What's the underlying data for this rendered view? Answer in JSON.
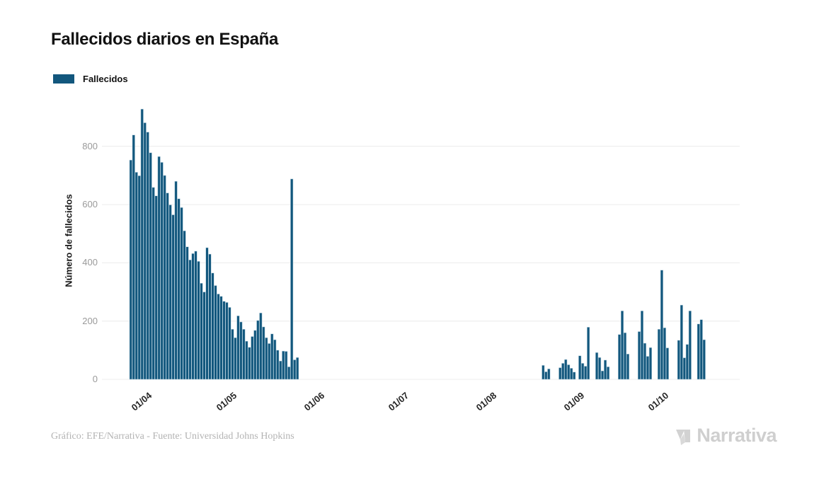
{
  "title": "Fallecidos diarios en España",
  "legend": {
    "items": [
      {
        "label": "Fallecidos",
        "color": "#12577d"
      }
    ]
  },
  "y_axis": {
    "title": "Número de fallecidos",
    "tick_labels": [
      "0",
      "200",
      "400",
      "600",
      "800"
    ]
  },
  "x_axis": {
    "tick_labels": [
      "01/04",
      "01/05",
      "01/06",
      "01/07",
      "01/08",
      "01/09",
      "01/10"
    ]
  },
  "footer": {
    "credit": "Gráfico: EFE/Narrativa - Fuente: Universidad Johns Hopkins"
  },
  "branding": {
    "logo_text": "Narrativa"
  },
  "chart_data": {
    "type": "bar",
    "title": "Fallecidos diarios en España",
    "xlabel": "",
    "ylabel": "Número de fallecidos",
    "legend_position": "top-left",
    "grid": true,
    "bar_color": "#12577d",
    "bar_stroke": "#b9d2df",
    "grid_color": "#ececec",
    "y_ticks": [
      0,
      200,
      400,
      600,
      800
    ],
    "ylim": [
      0,
      950
    ],
    "ticks": [
      {
        "label": "01/04",
        "day": 4
      },
      {
        "label": "01/05",
        "day": 34
      },
      {
        "label": "01/06",
        "day": 65
      },
      {
        "label": "01/07",
        "day": 95
      },
      {
        "label": "01/08",
        "day": 126
      },
      {
        "label": "01/09",
        "day": 157
      },
      {
        "label": "01/10",
        "day": 187
      }
    ],
    "series": [
      {
        "name": "Fallecidos",
        "values": [
          753,
          839,
          711,
          699,
          928,
          881,
          849,
          778,
          659,
          630,
          765,
          745,
          700,
          640,
          599,
          565,
          680,
          620,
          590,
          510,
          455,
          410,
          432,
          440,
          405,
          330,
          300,
          452,
          430,
          365,
          322,
          293,
          285,
          268,
          264,
          247,
          172,
          143,
          218,
          197,
          172,
          131,
          110,
          147,
          168,
          202,
          228,
          180,
          143,
          123,
          156,
          136,
          100,
          63,
          97,
          96,
          43,
          688,
          67,
          75,
          0,
          0,
          0,
          0,
          0,
          0,
          0,
          0,
          0,
          0,
          0,
          0,
          0,
          0,
          0,
          0,
          0,
          0,
          0,
          0,
          0,
          0,
          0,
          0,
          0,
          0,
          0,
          0,
          0,
          0,
          0,
          0,
          0,
          0,
          0,
          0,
          0,
          0,
          0,
          0,
          0,
          0,
          0,
          0,
          0,
          0,
          0,
          0,
          0,
          0,
          0,
          0,
          0,
          0,
          0,
          0,
          0,
          0,
          0,
          0,
          0,
          0,
          0,
          0,
          0,
          0,
          0,
          0,
          0,
          0,
          0,
          0,
          0,
          0,
          0,
          0,
          0,
          0,
          0,
          0,
          0,
          0,
          0,
          0,
          0,
          0,
          48,
          26,
          36,
          0,
          0,
          0,
          40,
          55,
          68,
          50,
          38,
          25,
          0,
          81,
          55,
          45,
          179,
          0,
          0,
          92,
          75,
          29,
          66,
          43,
          0,
          0,
          0,
          154,
          235,
          160,
          87,
          0,
          0,
          0,
          164,
          235,
          124,
          79,
          109,
          0,
          0,
          172,
          375,
          177,
          108,
          0,
          0,
          0,
          134,
          255,
          74,
          120,
          235,
          0,
          0,
          190,
          205,
          136
        ]
      }
    ]
  }
}
